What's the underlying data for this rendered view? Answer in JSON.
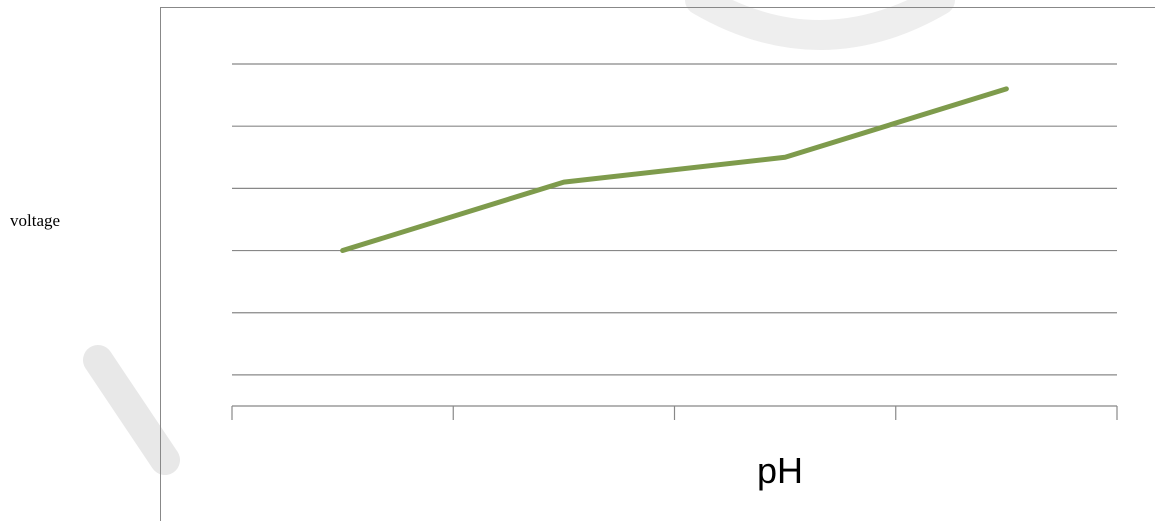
{
  "chart_data": {
    "type": "line",
    "title": "",
    "xlabel": "pH",
    "ylabel": "voltage",
    "categories": [
      "",
      "",
      "",
      ""
    ],
    "series": [
      {
        "values": [
          2,
          3.1,
          3.5,
          4.6
        ]
      }
    ],
    "ylim": [
      -0.5,
      5
    ],
    "grid": true,
    "legend": "none",
    "colors": {
      "line": "#7e9b4c",
      "grid": "#888888",
      "axis": "#888888",
      "watermark": "#e0e0e0"
    }
  }
}
